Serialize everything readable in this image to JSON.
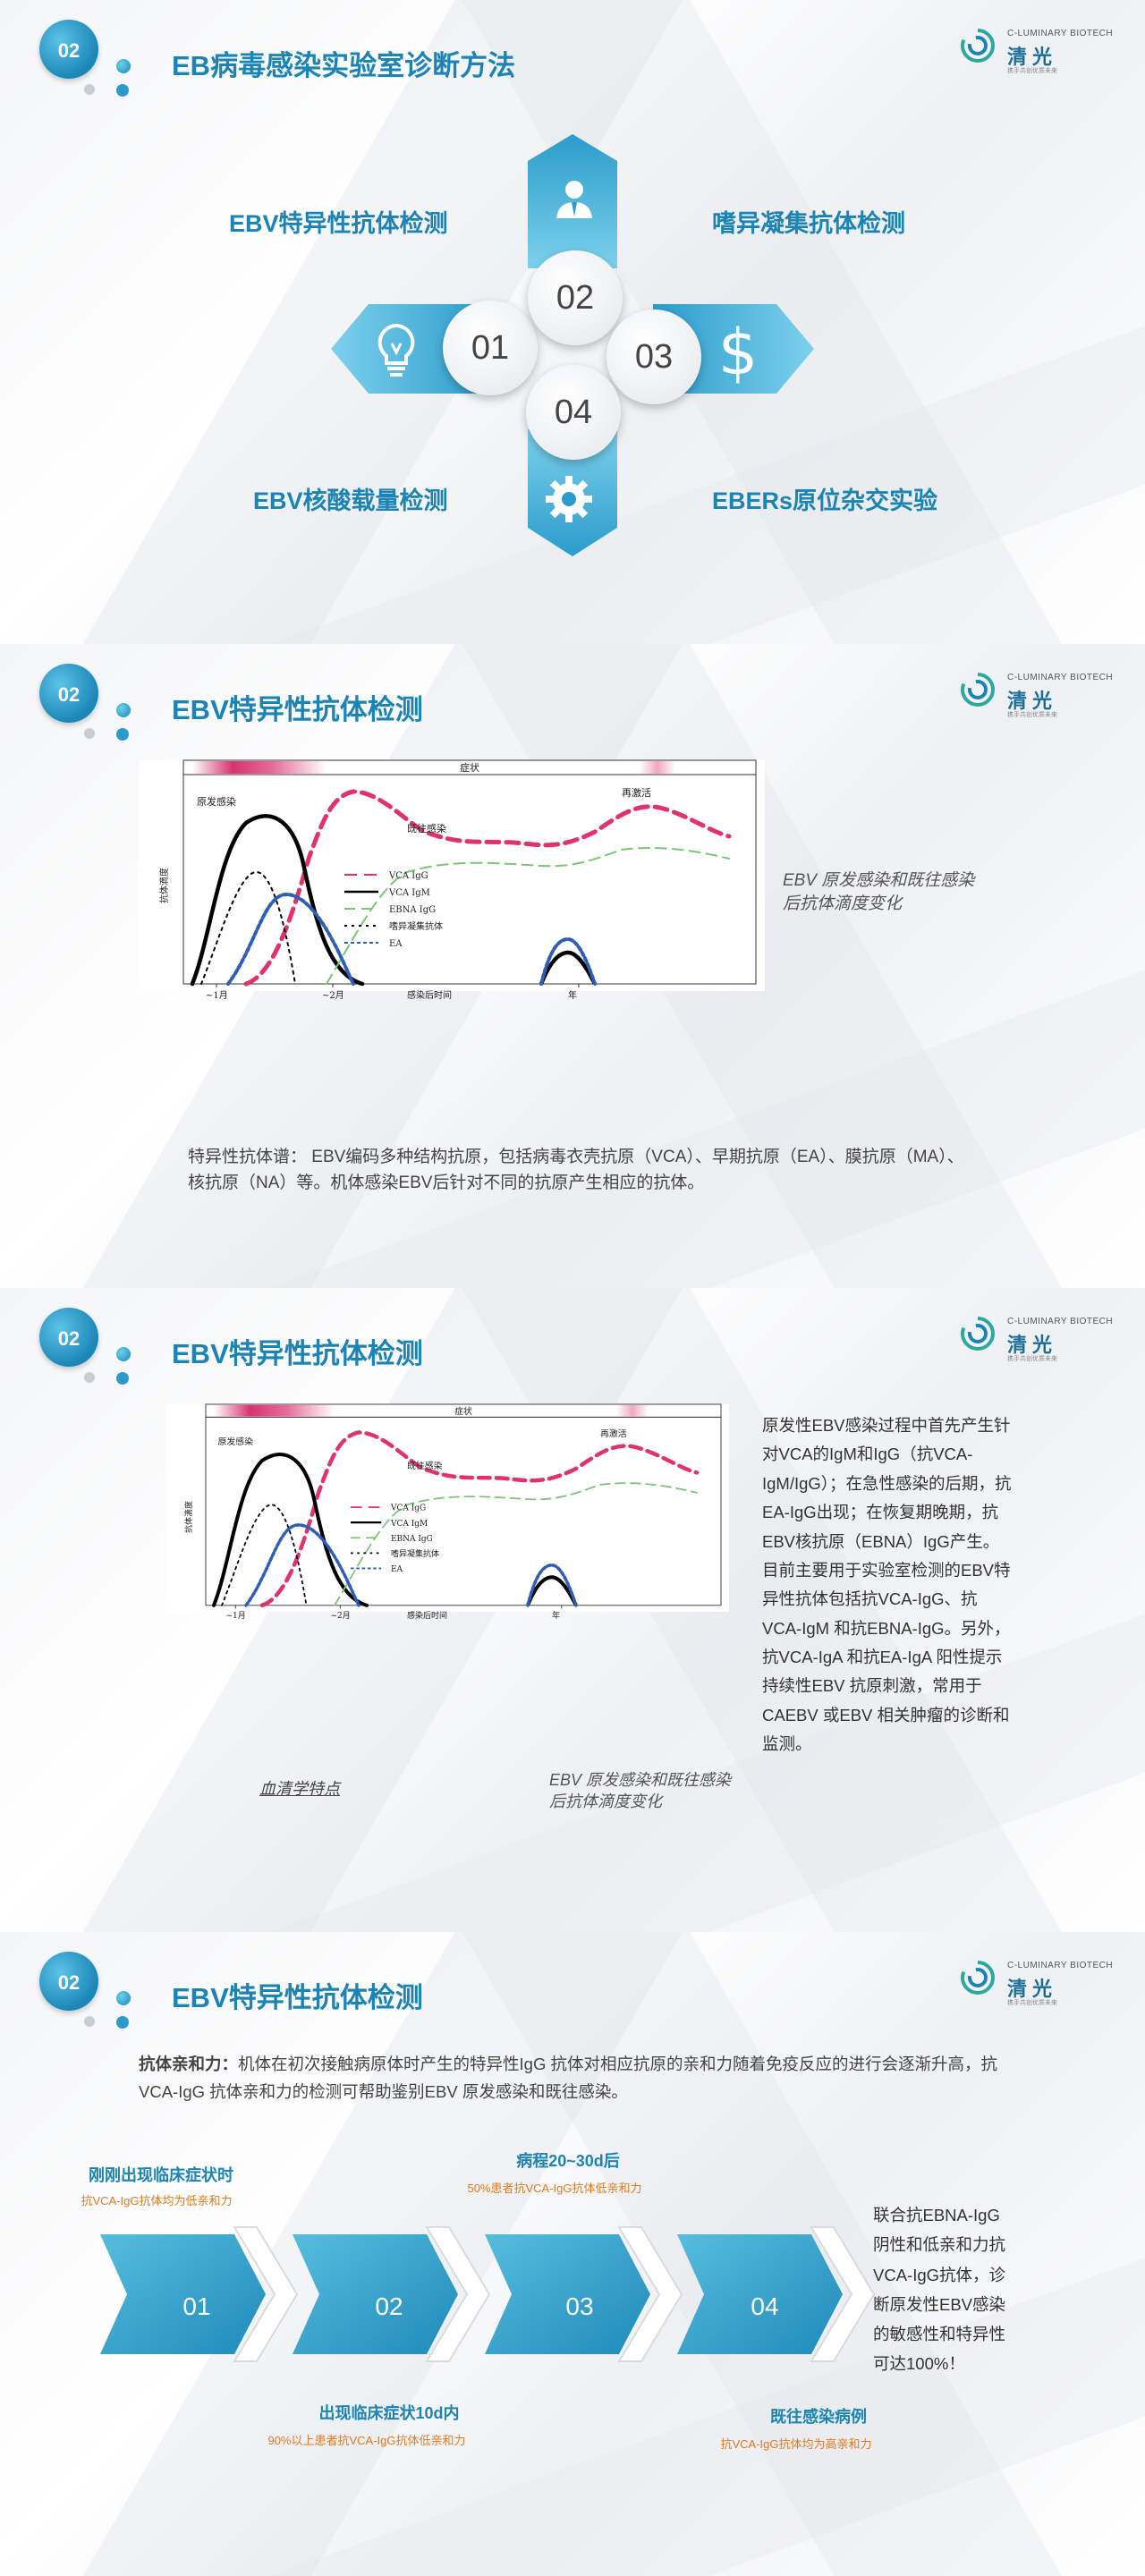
{
  "slide1": {
    "badge": "02",
    "title": "EB病毒感染实验室诊断方法",
    "logo": {
      "en": "C-LUMINARY BIOTECH",
      "cn": "清光",
      "tag": "携手共创优质未来"
    },
    "methods": {
      "tl": "EBV特异性抗体检测",
      "tr": "嗜异凝集抗体检测",
      "bl": "EBV核酸载量检测",
      "br": "EBERs原位杂交实验"
    },
    "circles": {
      "left": "01",
      "top": "02",
      "right": "03",
      "bottom": "04"
    },
    "icons": {
      "top": "person-icon",
      "left": "lightbulb-icon",
      "right": "dollar-icon",
      "bottom": "gear-icon"
    }
  },
  "slide2": {
    "badge": "02",
    "title": "EBV特异性抗体检测",
    "logo": {
      "en": "C-LUMINARY BIOTECH",
      "cn": "清光",
      "tag": "携手共创优质未来"
    },
    "caption": "EBV 原发感染和既往感染后抗体滴度变化",
    "paragraph": "特异性抗体谱： EBV编码多种结构抗原，包括病毒衣壳抗原（VCA）、早期抗原（EA）、膜抗原（MA）、核抗原（NA）等。机体感染EBV后针对不同的抗原产生相应的抗体。"
  },
  "slide3": {
    "badge": "02",
    "title": "EBV特异性抗体检测",
    "logo": {
      "en": "C-LUMINARY BIOTECH",
      "cn": "清光",
      "tag": "携手共创优质未来"
    },
    "left_caption": "血清学特点",
    "caption": "EBV 原发感染和既往感染后抗体滴度变化",
    "side_text": "原发性EBV感染过程中首先产生针对VCA的IgM和IgG（抗VCA-IgM/IgG）；在急性感染的后期，抗EA-IgG出现；在恢复期晚期，抗EBV核抗原（EBNA）IgG产生。目前主要用于实验室检测的EBV特异性抗体包括抗VCA-IgG、抗VCA-IgM 和抗EBNA-IgG。另外，抗VCA-IgA 和抗EA-IgA 阳性提示持续性EBV 抗原刺激，常用于CAEBV 或EBV 相关肿瘤的诊断和监测。"
  },
  "chart_data": {
    "type": "line",
    "title": "",
    "top_band_label": "症状",
    "xlabel": "感染后时间",
    "ylabel": "抗体滴度",
    "x_ticks": [
      "~1月",
      "~2月",
      "年"
    ],
    "annotations": [
      "原发感染",
      "既往感染",
      "再激活"
    ],
    "series": [
      {
        "name": "VCA IgG",
        "color": "#e0336e",
        "style": "long-dash"
      },
      {
        "name": "VCA IgM",
        "color": "#000000",
        "style": "solid"
      },
      {
        "name": "EBNA IgG",
        "color": "#7cc576",
        "style": "dash"
      },
      {
        "name": "嗜异凝集抗体",
        "color": "#000000",
        "style": "dot"
      },
      {
        "name": "EA",
        "color": "#2f5fb5",
        "style": "dot-dash"
      }
    ],
    "legend": "center"
  },
  "slide4": {
    "badge": "02",
    "title": "EBV特异性抗体检测",
    "logo": {
      "en": "C-LUMINARY BIOTECH",
      "cn": "清光",
      "tag": "携手共创优质未来"
    },
    "intro_bold": "抗体亲和力：",
    "intro_text": "机体在初次接触病原体时产生的特异性IgG 抗体对相应抗原的亲和力随着免疫反应的进行会逐渐升高，抗VCA-IgG 抗体亲和力的检测可帮助鉴别EBV 原发感染和既往感染。",
    "steps": [
      {
        "num": "01",
        "label": "刚刚出现临床症状时",
        "note": "抗VCA-IgG抗体均为低亲和力"
      },
      {
        "num": "02",
        "label": "出现临床症状10d内",
        "note": "90%以上患者抗VCA-IgG抗体低亲和力"
      },
      {
        "num": "03",
        "label": "病程20~30d后",
        "note": "50%患者抗VCA-IgG抗体低亲和力"
      },
      {
        "num": "04",
        "label": "既往感染病例",
        "note": "抗VCA-IgG抗体均为高亲和力"
      }
    ],
    "conclusion": "联合抗EBNA-IgG阴性和低亲和力抗VCA-IgG抗体，诊断原发性EBV感染的敏感性和特异性可达100%！"
  }
}
